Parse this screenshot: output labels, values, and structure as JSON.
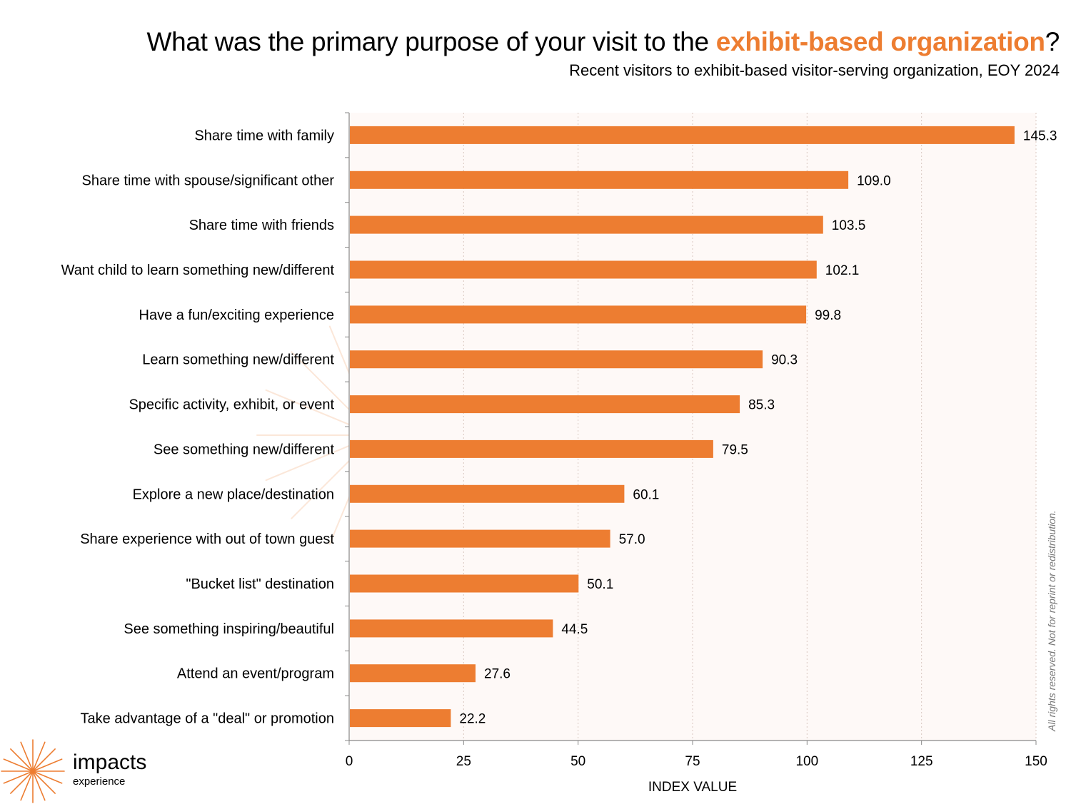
{
  "header": {
    "title_prefix": "What was the primary purpose of your visit to the ",
    "title_highlight": "exhibit-based organization",
    "title_suffix": "?",
    "subtitle": "Recent visitors to exhibit-based visitor-serving organization, EOY 2024"
  },
  "chart_data": {
    "type": "bar",
    "orientation": "horizontal",
    "categories": [
      "Share time with family",
      "Share time with spouse/significant other",
      "Share time with friends",
      "Want child to learn something new/different",
      "Have a fun/exciting experience",
      "Learn something new/different",
      "Specific activity, exhibit, or event",
      "See something new/different",
      "Explore a new place/destination",
      "Share experience with out of town guest",
      "\"Bucket list\" destination",
      "See something inspiring/beautiful",
      "Attend an event/program",
      "Take advantage of a \"deal\" or promotion"
    ],
    "values": [
      145.3,
      109.0,
      103.5,
      102.1,
      99.8,
      90.3,
      85.3,
      79.5,
      60.1,
      57.0,
      50.1,
      44.5,
      27.6,
      22.2
    ],
    "value_labels": [
      "145.3",
      "109.0",
      "103.5",
      "102.1",
      "99.8",
      "90.3",
      "85.3",
      "79.5",
      "60.1",
      "57.0",
      "50.1",
      "44.5",
      "27.6",
      "22.2"
    ],
    "xlabel": "INDEX VALUE",
    "ylabel": "",
    "xlim": [
      0,
      150
    ],
    "xticks": [
      0,
      25,
      50,
      75,
      100,
      125,
      150
    ],
    "grid": "vertical dotted",
    "bar_color": "#ED7D31",
    "plot_background": "#FEF9F7"
  },
  "watermark": {
    "line1": "impacts",
    "line2": "experience"
  },
  "footer": {
    "brand_line1": "impacts",
    "brand_line2": "experience",
    "rights": "All rights reserved. Not for reprint or redistribution."
  },
  "colors": {
    "accent": "#ED7D31",
    "text": "#000000"
  },
  "icons": {
    "logo": "starburst-icon"
  }
}
